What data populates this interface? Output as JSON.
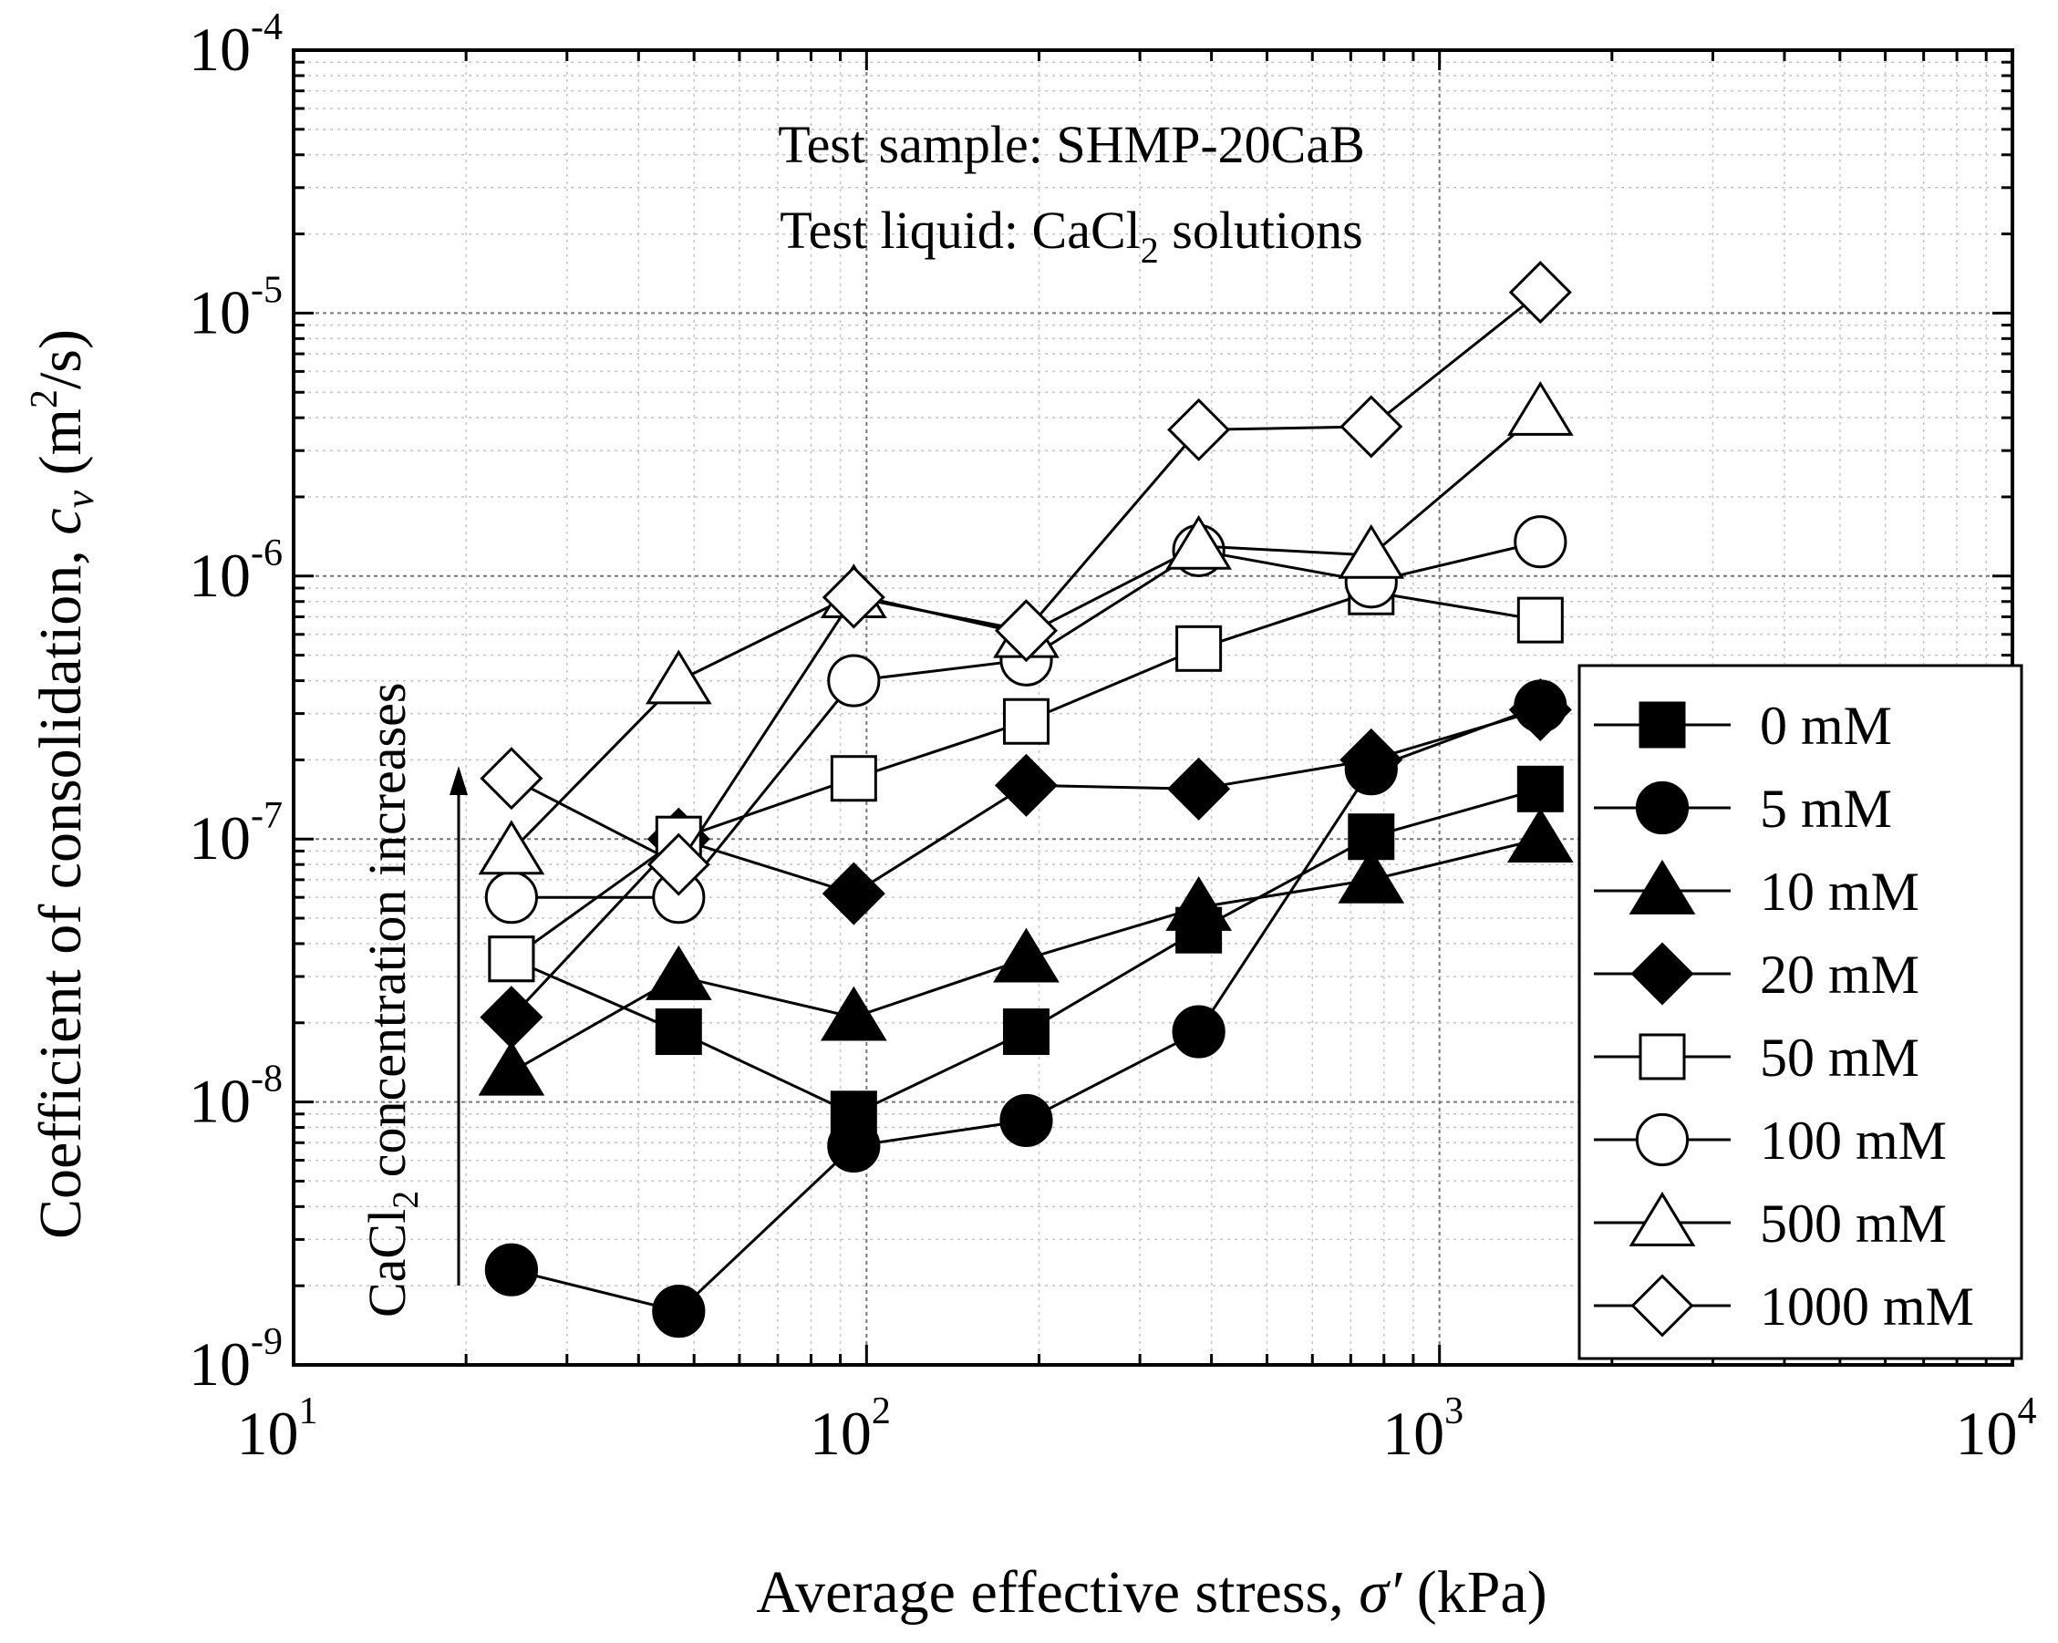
{
  "chart_data": {
    "type": "scatter",
    "x_scale": "log",
    "y_scale": "log",
    "xlim": [
      10,
      10000
    ],
    "ylim": [
      1e-09,
      0.0001
    ],
    "x_ticks": [
      {
        "value": 10,
        "base": "10",
        "exp": "1"
      },
      {
        "value": 100,
        "base": "10",
        "exp": "2"
      },
      {
        "value": 1000,
        "base": "10",
        "exp": "3"
      },
      {
        "value": 10000,
        "base": "10",
        "exp": "4"
      }
    ],
    "y_ticks": [
      {
        "value": 1e-09,
        "base": "10",
        "exp": "-9"
      },
      {
        "value": 1e-08,
        "base": "10",
        "exp": "-8"
      },
      {
        "value": 1e-07,
        "base": "10",
        "exp": "-7"
      },
      {
        "value": 1e-06,
        "base": "10",
        "exp": "-6"
      },
      {
        "value": 1e-05,
        "base": "10",
        "exp": "-5"
      },
      {
        "value": 0.0001,
        "base": "10",
        "exp": "-4"
      }
    ],
    "grid": true,
    "xlabel": {
      "prefix": "Average effective stress, ",
      "symbol": "σ′",
      "suffix": " (kPa)"
    },
    "ylabel": {
      "prefix": "Coefficient of consolidation, ",
      "symbol": "c",
      "sub": "v",
      "unit_prefix": " (m",
      "unit_sup": "2",
      "unit_suffix": "/s)"
    },
    "annotations": {
      "sample": "Test sample: SHMP-20CaB",
      "liquid_prefix": "Test liquid: CaCl",
      "liquid_sub": "2",
      "liquid_suffix": " solutions",
      "arrow_prefix": "CaCl",
      "arrow_sub": "2",
      "arrow_suffix": " concentration increases"
    },
    "legend_position": "right",
    "x": [
      24,
      47,
      95,
      190,
      380,
      760,
      1500
    ],
    "series": [
      {
        "name": "0 mM",
        "marker": "square",
        "filled": true,
        "values": [
          3.5e-08,
          1.85e-08,
          9e-09,
          1.85e-08,
          4.5e-08,
          1.02e-07,
          1.55e-07
        ]
      },
      {
        "name": "5 mM",
        "marker": "circle",
        "filled": true,
        "values": [
          2.3e-09,
          1.6e-09,
          6.8e-09,
          8.5e-09,
          1.85e-08,
          1.85e-07,
          3.2e-07
        ]
      },
      {
        "name": "10 mM",
        "marker": "triangle",
        "filled": true,
        "values": [
          1.3e-08,
          3e-08,
          2.1e-08,
          3.5e-08,
          5.5e-08,
          7e-08,
          1e-07
        ]
      },
      {
        "name": "20 mM",
        "marker": "diamond",
        "filled": true,
        "values": [
          2.1e-08,
          1e-07,
          6.2e-08,
          1.6e-07,
          1.55e-07,
          2e-07,
          3.1e-07
        ]
      },
      {
        "name": "50 mM",
        "marker": "square",
        "filled": false,
        "values": [
          3.5e-08,
          1e-07,
          1.7e-07,
          2.8e-07,
          5.3e-07,
          8.7e-07,
          6.8e-07
        ]
      },
      {
        "name": "100 mM",
        "marker": "circle",
        "filled": false,
        "values": [
          6e-08,
          6e-08,
          4e-07,
          4.8e-07,
          1.25e-06,
          9.5e-07,
          1.35e-06
        ]
      },
      {
        "name": "500 mM",
        "marker": "triangle",
        "filled": false,
        "values": [
          9e-08,
          4e-07,
          8.5e-07,
          6e-07,
          1.3e-06,
          1.2e-06,
          4.2e-06
        ]
      },
      {
        "name": "1000 mM",
        "marker": "diamond",
        "filled": false,
        "values": [
          1.7e-07,
          8e-08,
          8.3e-07,
          6.2e-07,
          3.6e-06,
          3.7e-06,
          1.2e-05
        ]
      }
    ]
  }
}
